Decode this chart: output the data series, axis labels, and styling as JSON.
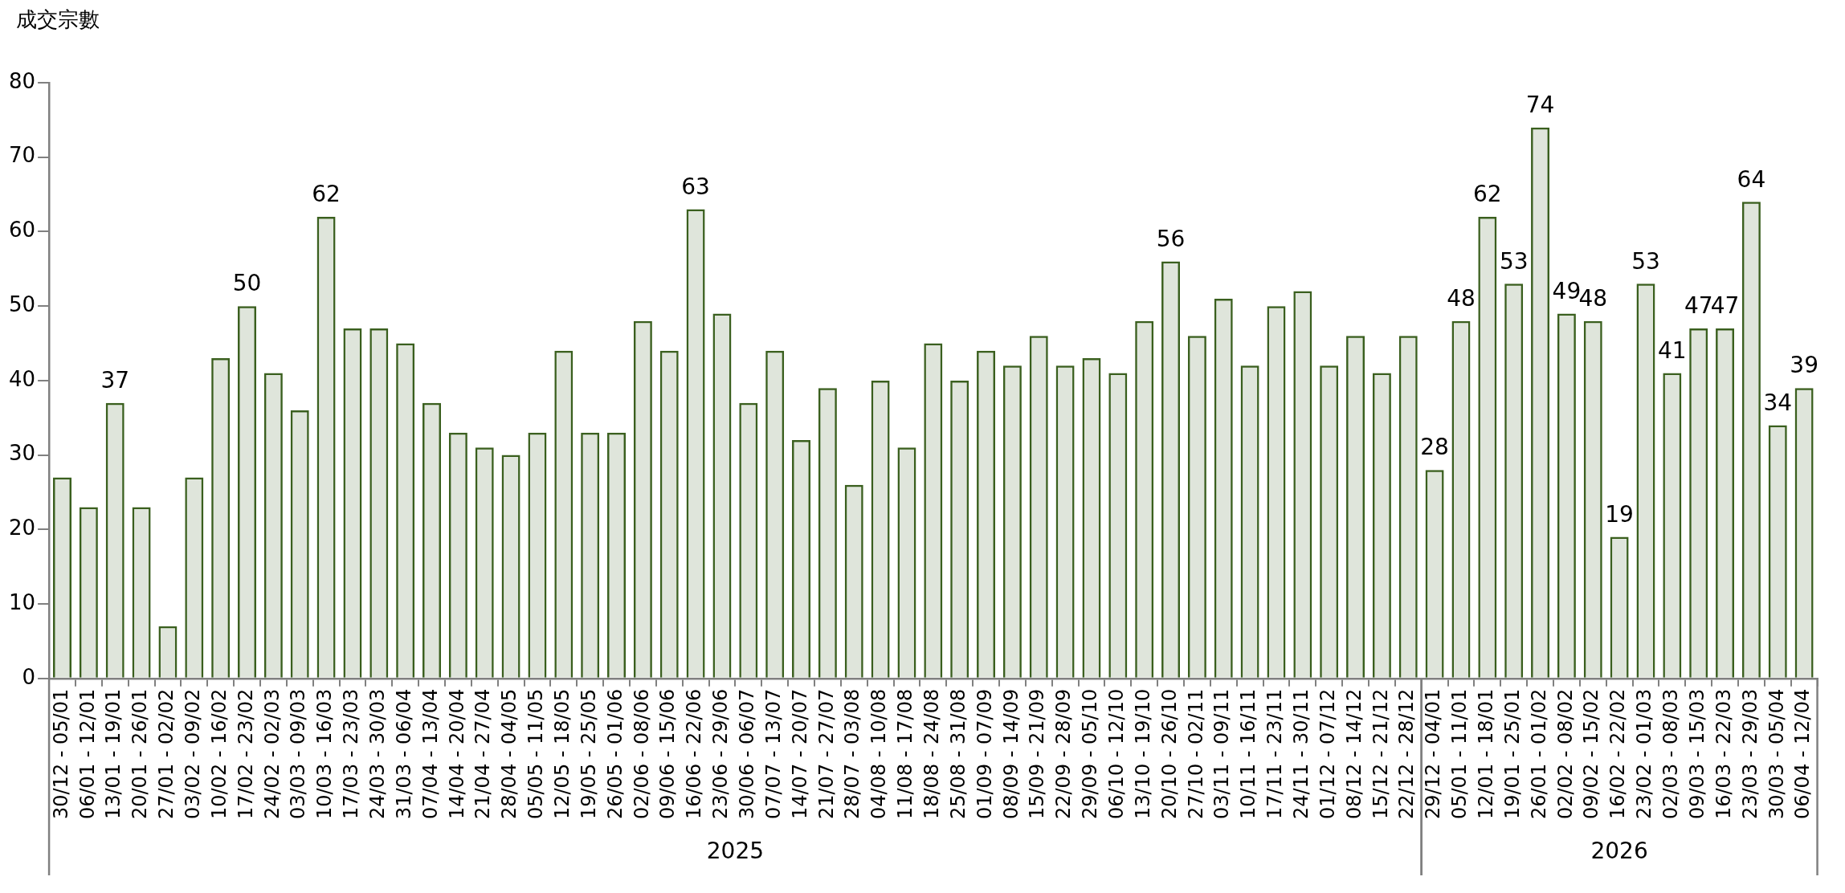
{
  "chart_data": {
    "type": "bar",
    "ylabel": "成交宗數",
    "categories": [
      "30/12 - 05/01",
      "06/01 - 12/01",
      "13/01 - 19/01",
      "20/01 - 26/01",
      "27/01 - 02/02",
      "03/02 - 09/02",
      "10/02 - 16/02",
      "17/02 - 23/02",
      "24/02 - 02/03",
      "03/03 - 09/03",
      "10/03 - 16/03",
      "17/03 - 23/03",
      "24/03 - 30/03",
      "31/03 - 06/04",
      "07/04 - 13/04",
      "14/04 - 20/04",
      "21/04 - 27/04",
      "28/04 - 04/05",
      "05/05 - 11/05",
      "12/05 - 18/05",
      "19/05 - 25/05",
      "26/05 - 01/06",
      "02/06 - 08/06",
      "09/06 - 15/06",
      "16/06 - 22/06",
      "23/06 - 29/06",
      "30/06 - 06/07",
      "07/07 - 13/07",
      "14/07 - 20/07",
      "21/07 - 27/07",
      "28/07 - 03/08",
      "04/08 - 10/08",
      "11/08 - 17/08",
      "18/08 - 24/08",
      "25/08 - 31/08",
      "01/09 - 07/09",
      "08/09 - 14/09",
      "15/09 - 21/09",
      "22/09 - 28/09",
      "29/09 - 05/10",
      "06/10 - 12/10",
      "13/10 - 19/10",
      "20/10 - 26/10",
      "27/10 - 02/11",
      "03/11 - 09/11",
      "10/11 - 16/11",
      "17/11 - 23/11",
      "24/11 - 30/11",
      "01/12 - 07/12",
      "08/12 - 14/12",
      "15/12 - 21/12",
      "22/12 - 28/12",
      "29/12 - 04/01",
      "05/01 - 11/01",
      "12/01 - 18/01",
      "19/01 - 25/01",
      "26/01 - 01/02",
      "02/02 - 08/02",
      "09/02 - 15/02",
      "16/02 - 22/02",
      "23/02 - 01/03",
      "02/03 - 08/03",
      "09/03 - 15/03",
      "16/03 - 22/03",
      "23/03 - 29/03",
      "30/03 - 05/04",
      "06/04 - 12/04"
    ],
    "values": [
      27,
      23,
      37,
      23,
      7,
      27,
      43,
      50,
      41,
      36,
      62,
      47,
      47,
      45,
      37,
      33,
      31,
      30,
      33,
      44,
      33,
      33,
      48,
      44,
      63,
      49,
      37,
      44,
      32,
      39,
      26,
      40,
      31,
      45,
      40,
      44,
      42,
      46,
      42,
      43,
      41,
      48,
      56,
      46,
      51,
      42,
      50,
      52,
      42,
      46,
      41,
      46,
      28,
      48,
      62,
      53,
      74,
      49,
      48,
      19,
      53,
      41,
      47,
      47,
      64,
      34,
      39
    ],
    "value_labels": [
      null,
      null,
      "37",
      null,
      null,
      null,
      null,
      "50",
      null,
      null,
      "62",
      null,
      null,
      null,
      null,
      null,
      null,
      null,
      null,
      null,
      null,
      null,
      null,
      null,
      "63",
      null,
      null,
      null,
      null,
      null,
      null,
      null,
      null,
      null,
      null,
      null,
      null,
      null,
      null,
      null,
      null,
      null,
      "56",
      null,
      null,
      null,
      null,
      null,
      null,
      null,
      null,
      null,
      "28",
      "48",
      "62",
      "53",
      "74",
      "49",
      "48",
      "19",
      "53",
      "41",
      "47",
      "47",
      "64",
      "34",
      "39"
    ],
    "color": "#3a5f1e",
    "ylim": [
      0,
      80
    ],
    "yticks": [
      0,
      10,
      20,
      30,
      40,
      50,
      60,
      70,
      80
    ],
    "grid": false,
    "legend": false,
    "annotations": [
      "2025",
      "2026"
    ]
  }
}
